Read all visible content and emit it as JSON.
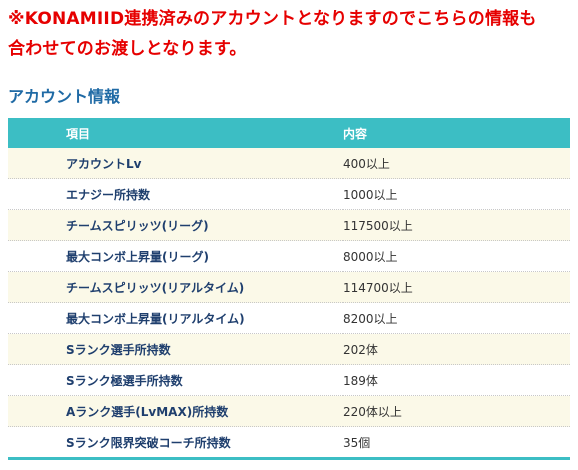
{
  "notice": {
    "line1": "※KONAMIID連携済みのアカウントとなりますのでこちらの情報も",
    "line2": "合わせてのお渡しとなります。"
  },
  "section": {
    "title": "アカウント情報"
  },
  "table": {
    "headers": {
      "item": "項目",
      "value": "内容"
    },
    "rows": [
      {
        "item": "アカウントLv",
        "value": "400以上"
      },
      {
        "item": "エナジー所持数",
        "value": "1000以上"
      },
      {
        "item": "チームスピリッツ(リーグ)",
        "value": "117500以上"
      },
      {
        "item": "最大コンボ上昇量(リーグ)",
        "value": "8000以上"
      },
      {
        "item": "チームスピリッツ(リアルタイム)",
        "value": "114700以上"
      },
      {
        "item": "最大コンボ上昇量(リアルタイム)",
        "value": "8200以上"
      },
      {
        "item": "Sランク選手所持数",
        "value": "202体"
      },
      {
        "item": "Sランク極選手所持数",
        "value": "189体"
      },
      {
        "item": "Aランク選手(LvMAX)所持数",
        "value": "220体以上"
      },
      {
        "item": "Sランク限界突破コーチ所持数",
        "value": "35個"
      }
    ]
  },
  "colors": {
    "notice": "#e60000",
    "section_title": "#1f6aa5",
    "header_bg": "#3cbec4",
    "row_alt_bg": "#fbf9e8"
  }
}
